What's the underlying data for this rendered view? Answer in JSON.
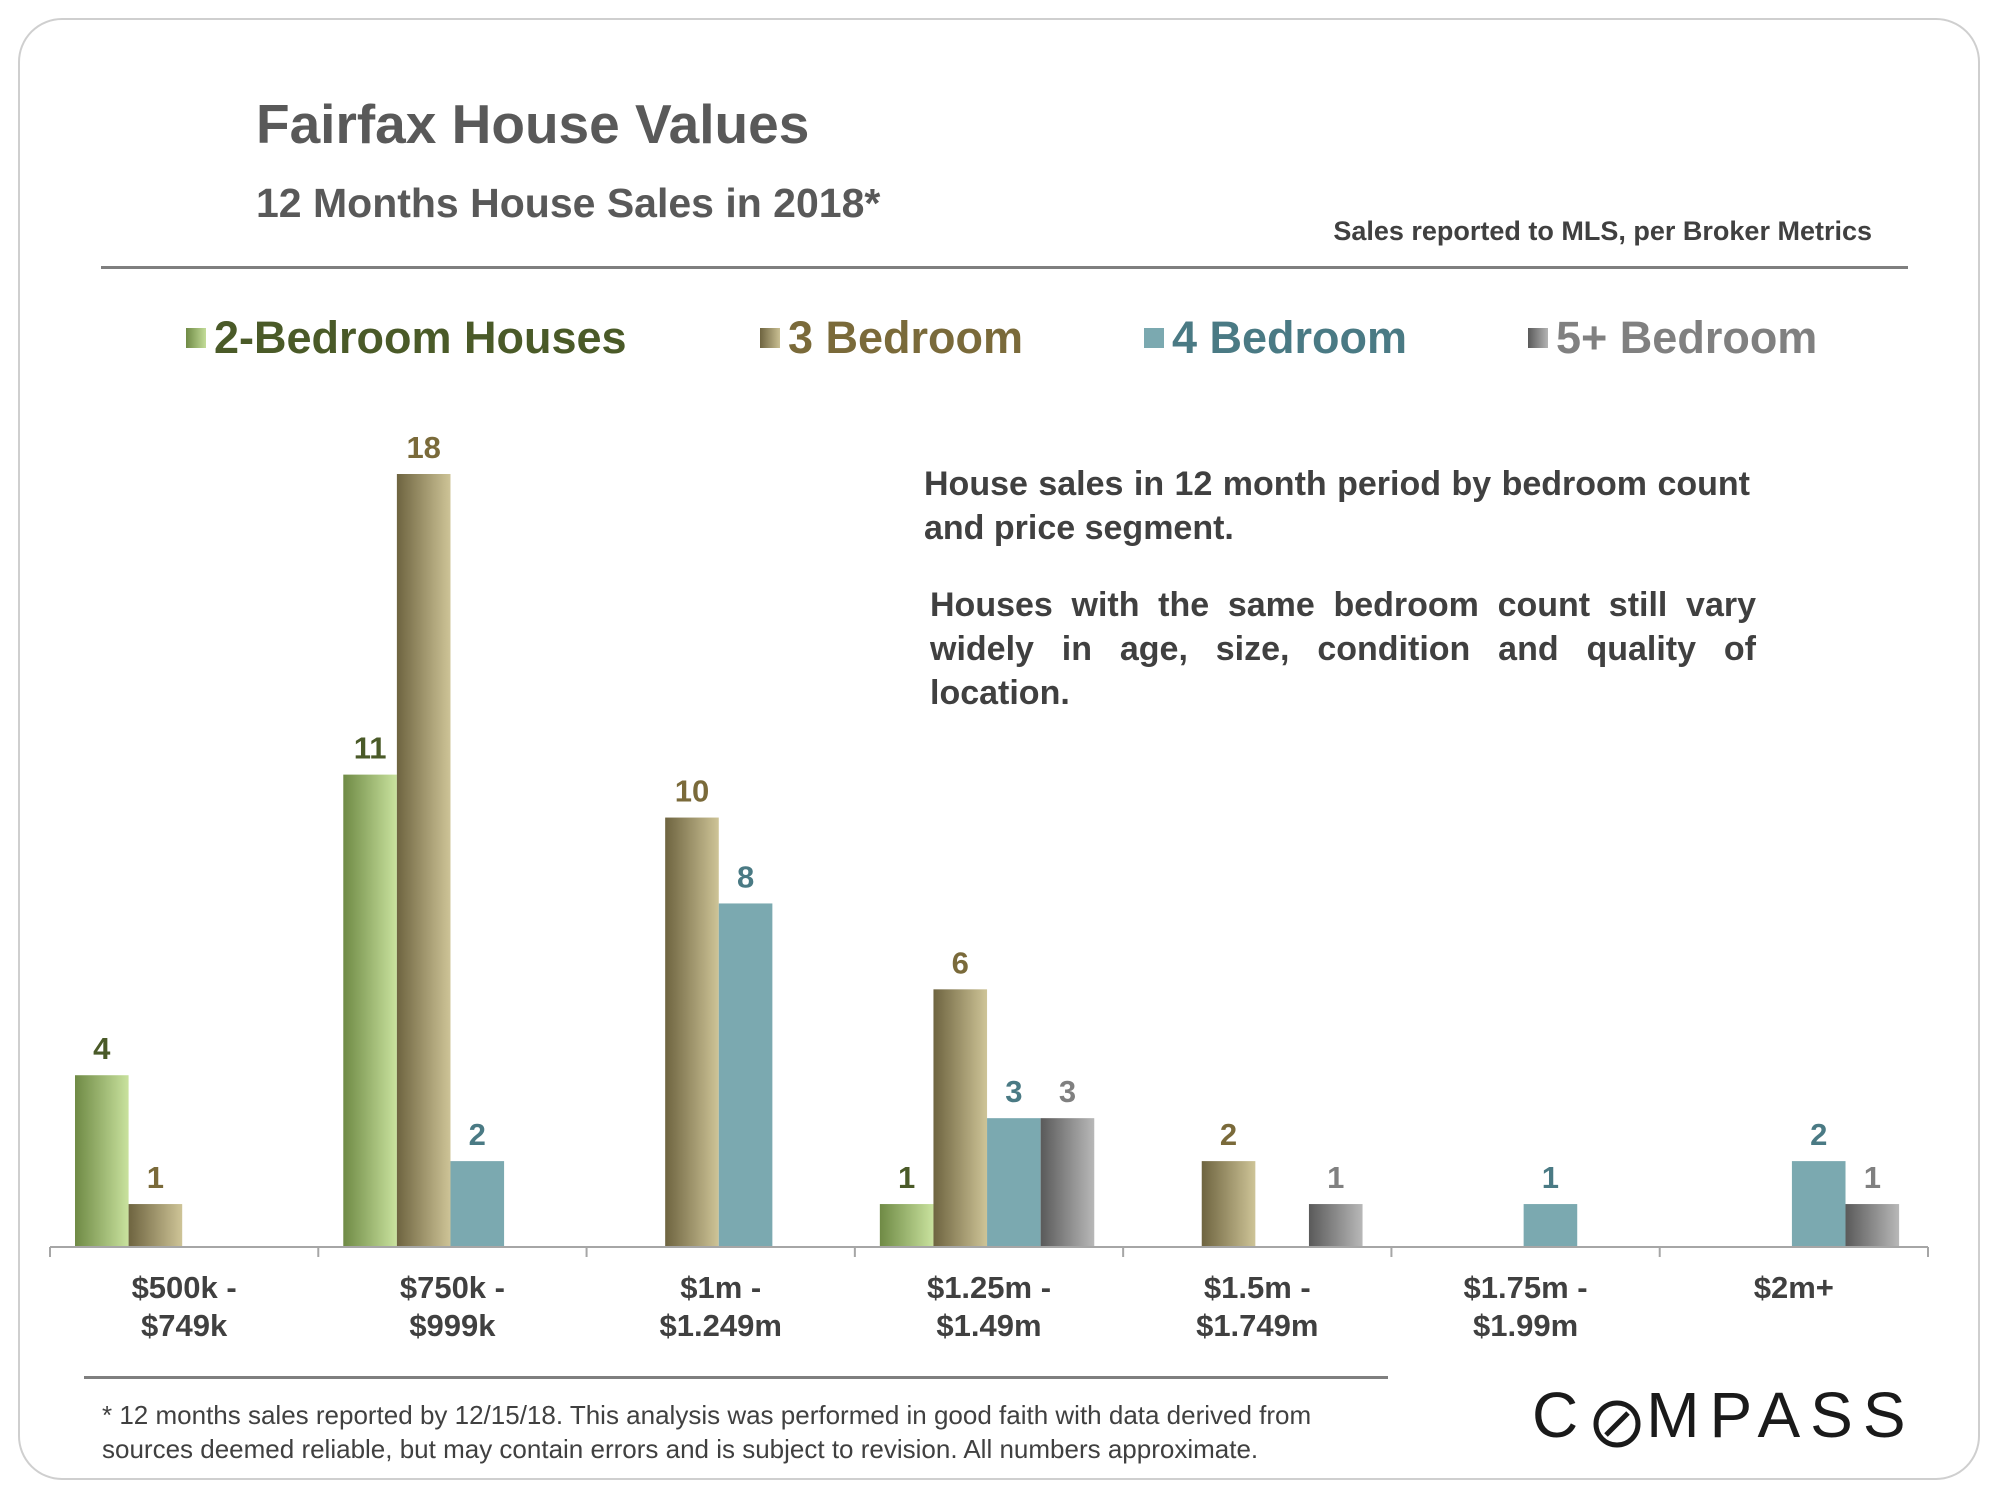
{
  "header": {
    "title": "Fairfax House Values",
    "subtitle": "12 Months House Sales in 2018*",
    "source": "Sales reported to MLS, per Broker Metrics"
  },
  "notes": {
    "note1": "House sales in 12 month period by bedroom count and price segment.",
    "note2": "Houses with the same bedroom count still vary widely in age, size, condition and quality of location."
  },
  "footer": {
    "footnote_line1": "* 12 months sales reported by 12/15/18. This analysis was performed in good faith with data derived from",
    "footnote_line2": "sources deemed reliable, but may contain errors and is subject to revision. All numbers approximate.",
    "logo_text_left": "C",
    "logo_text_right": "MPASS"
  },
  "colors": {
    "series_2bed": "#a7c47c",
    "series_3bed": "#a89c6a",
    "series_4bed": "#7ba9b0",
    "series_5bed": "#8a8a8a",
    "label_2bed": "#4a5a28",
    "label_3bed": "#7a6a3a",
    "label_4bed": "#4a7a84",
    "label_5bed": "#808080"
  },
  "chart_data": {
    "type": "bar",
    "categories": [
      [
        "$500k -",
        "$749k"
      ],
      [
        "$750k -",
        "$999k"
      ],
      [
        "$1m -",
        "$1.249m"
      ],
      [
        "$1.25m -",
        "$1.49m"
      ],
      [
        "$1.5m -",
        "$1.749m"
      ],
      [
        "$1.75m -",
        "$1.99m"
      ],
      [
        "$2m+"
      ]
    ],
    "series": [
      {
        "name": "2-Bedroom Houses",
        "values": [
          4,
          11,
          null,
          1,
          null,
          null,
          null
        ]
      },
      {
        "name": "3 Bedroom",
        "values": [
          1,
          18,
          10,
          6,
          2,
          null,
          null
        ]
      },
      {
        "name": "4 Bedroom",
        "values": [
          null,
          2,
          8,
          3,
          null,
          1,
          2
        ]
      },
      {
        "name": "5+ Bedroom",
        "values": [
          null,
          null,
          null,
          3,
          1,
          null,
          1
        ]
      }
    ],
    "ylim": [
      0,
      18
    ],
    "grid": false,
    "legend": "top"
  }
}
